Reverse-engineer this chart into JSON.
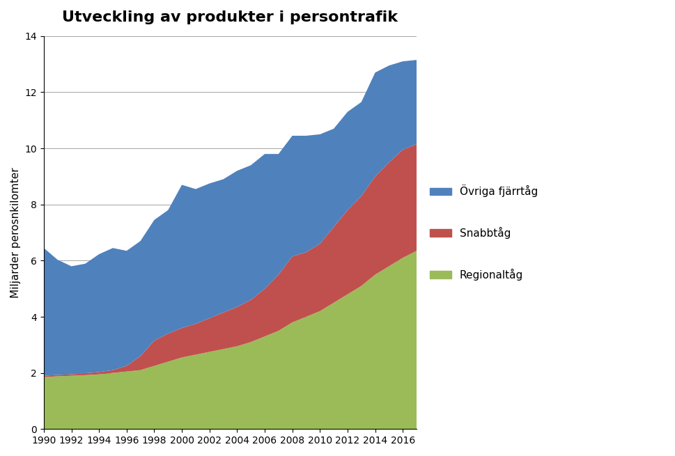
{
  "title": "Utveckling av produkter i persontrafik",
  "ylabel": "Miljarder perosnkilomter",
  "xlim": [
    1990,
    2017
  ],
  "ylim": [
    0,
    14
  ],
  "yticks": [
    0,
    2,
    4,
    6,
    8,
    10,
    12,
    14
  ],
  "xticks": [
    1990,
    1992,
    1994,
    1996,
    1998,
    2000,
    2002,
    2004,
    2006,
    2008,
    2010,
    2012,
    2014,
    2016
  ],
  "colors": {
    "regional": "#9BBB59",
    "snabb": "#C0504D",
    "ovriga": "#4F81BD"
  },
  "years": [
    1990,
    1991,
    1992,
    1993,
    1994,
    1995,
    1996,
    1997,
    1998,
    1999,
    2000,
    2001,
    2002,
    2003,
    2004,
    2005,
    2006,
    2007,
    2008,
    2009,
    2010,
    2011,
    2012,
    2013,
    2014,
    2015,
    2016,
    2017
  ],
  "regionaltag": [
    1.85,
    1.88,
    1.9,
    1.92,
    1.95,
    2.0,
    2.05,
    2.1,
    2.25,
    2.4,
    2.55,
    2.65,
    2.75,
    2.85,
    2.95,
    3.1,
    3.3,
    3.5,
    3.8,
    4.0,
    4.2,
    4.5,
    4.8,
    5.1,
    5.5,
    5.8,
    6.1,
    6.35
  ],
  "snabbtag": [
    0.05,
    0.05,
    0.05,
    0.07,
    0.08,
    0.1,
    0.2,
    0.5,
    0.9,
    1.0,
    1.05,
    1.1,
    1.2,
    1.3,
    1.4,
    1.5,
    1.7,
    2.0,
    2.35,
    2.3,
    2.4,
    2.7,
    3.0,
    3.2,
    3.5,
    3.7,
    3.85,
    3.8
  ],
  "ovrigafjarrtag": [
    4.55,
    4.1,
    3.85,
    3.9,
    4.2,
    4.35,
    4.1,
    4.1,
    4.3,
    4.4,
    5.1,
    4.8,
    4.8,
    4.75,
    4.85,
    4.8,
    4.8,
    4.3,
    4.3,
    4.15,
    3.9,
    3.5,
    3.5,
    3.35,
    3.7,
    3.45,
    3.15,
    3.0
  ]
}
